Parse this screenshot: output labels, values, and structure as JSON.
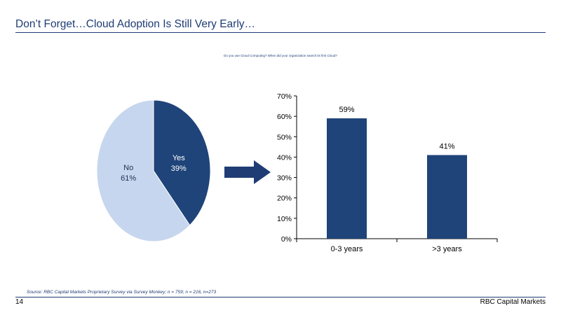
{
  "header": {
    "title": "Don’t Forget…Cloud Adoption Is Still Very Early…",
    "survey_question": "Do you use Cloud Computing? When did your organization search its first Cloud?"
  },
  "footer": {
    "source": "Source: RBC Capital Markets Proprietary Survey via Survey Monkey; n = 759; n = 216, n=273",
    "page_number": "14",
    "brand": "RBC Capital Markets"
  },
  "colors": {
    "accent": "#1f3c74",
    "pie_yes": "#1f4479",
    "pie_no": "#c6d6ee",
    "bar": "#1f4479",
    "arrow": "#1f3c74"
  },
  "arrow_icon": "right-arrow-icon",
  "chart_data": [
    {
      "type": "pie",
      "slices": [
        {
          "label": "Yes",
          "value": 39,
          "value_label": "39%"
        },
        {
          "label": "No",
          "value": 61,
          "value_label": "61%"
        }
      ]
    },
    {
      "type": "bar",
      "categories": [
        "0-3 years",
        ">3 years"
      ],
      "values": [
        59,
        41
      ],
      "data_labels": [
        "59%",
        "41%"
      ],
      "ylim": [
        0,
        70
      ],
      "yticks": [
        0,
        10,
        20,
        30,
        40,
        50,
        60,
        70
      ],
      "ytick_labels": [
        "0%",
        "10%",
        "20%",
        "30%",
        "40%",
        "50%",
        "60%",
        "70%"
      ],
      "grid": false,
      "xlabel": "",
      "ylabel": ""
    }
  ]
}
